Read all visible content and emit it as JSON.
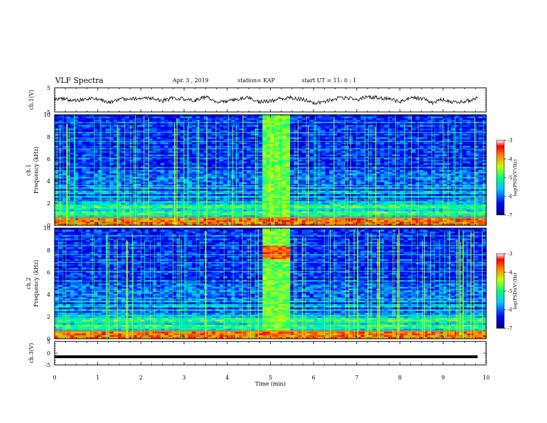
{
  "header": {
    "title": "VLF Spectra",
    "date": "Apr. 3 , 2019",
    "station": "station= KAP",
    "start": "start UT = 11: 0 : 1"
  },
  "chart_data": [
    {
      "type": "line",
      "panel": "ch1-waveform",
      "ylabel": "ch.1(V)",
      "ylim": [
        -5,
        5
      ],
      "yticks": [
        "5",
        "-5"
      ],
      "xlim": [
        0,
        10
      ],
      "x": [
        0,
        0.25,
        0.5,
        0.75,
        1,
        1.25,
        1.5,
        1.75,
        2,
        2.25,
        2.5,
        2.75,
        3,
        3.25,
        3.5,
        3.75,
        4,
        4.25,
        4.5,
        4.75,
        5,
        5.25,
        5.5,
        5.75,
        6,
        6.25,
        6.5,
        6.75,
        7,
        7.25,
        7.5,
        7.75,
        8,
        8.25,
        8.5,
        8.75,
        9,
        9.25,
        9.5,
        9.75,
        9.8
      ],
      "values": [
        0.5,
        0.3,
        -0.4,
        0.6,
        0.2,
        -1.2,
        0.5,
        0.2,
        0.9,
        0.7,
        -0.5,
        0.8,
        0.4,
        -0.2,
        1.1,
        -0.6,
        -0.9,
        0.4,
        1.1,
        -0.8,
        -0.5,
        0.6,
        0.9,
        0.2,
        -1.2,
        -0.8,
        0.5,
        1.0,
        0.0,
        1.4,
        0.8,
        0.3,
        -0.7,
        0.9,
        0.6,
        -1.1,
        0.2,
        -0.9,
        -0.6,
        0.3,
        0.7
      ],
      "color": "#000000"
    },
    {
      "type": "heatmap",
      "panel": "ch1-spectrogram",
      "ylabel_top": "ch.1",
      "ylabel": "Frequency (kHz)",
      "ylim": [
        0,
        10
      ],
      "yticks": [
        "0",
        "2",
        "4",
        "6",
        "8",
        "10"
      ],
      "xlim": [
        0,
        10
      ],
      "colorbar": {
        "label": "log(PSD)(V²/Hz)",
        "range": [
          -7,
          -3
        ],
        "ticks": [
          "-3",
          "-4",
          "-5",
          "-6",
          "-7"
        ]
      },
      "broadband_interval_min": [
        4.75,
        5.4
      ]
    },
    {
      "type": "heatmap",
      "panel": "ch2-spectrogram",
      "ylabel_top": "ch.2",
      "ylabel": "Frequency (kHz)",
      "ylim": [
        0,
        10
      ],
      "yticks": [
        "0",
        "2",
        "4",
        "6",
        "8",
        "10"
      ],
      "xlim": [
        0,
        10
      ],
      "colorbar": {
        "label": "log(PSD)(V²/Hz)",
        "range": [
          -7,
          -3
        ],
        "ticks": [
          "-3",
          "-4",
          "-5",
          "-6",
          "-7"
        ]
      },
      "broadband_interval_min": [
        4.75,
        5.4
      ]
    },
    {
      "type": "line",
      "panel": "ch3-waveform",
      "ylabel": "ch.3(V)",
      "ylim": [
        -5,
        5
      ],
      "yticks": [
        "5",
        "0",
        "-5"
      ],
      "xlim": [
        0,
        10
      ],
      "x": [
        0,
        9.8
      ],
      "values": [
        -1.5,
        -1.5
      ],
      "color": "#000000"
    }
  ],
  "xaxis": {
    "label": "Time (min)",
    "ticks": [
      "0",
      "1",
      "2",
      "3",
      "4",
      "5",
      "6",
      "7",
      "8",
      "9",
      "10"
    ]
  }
}
